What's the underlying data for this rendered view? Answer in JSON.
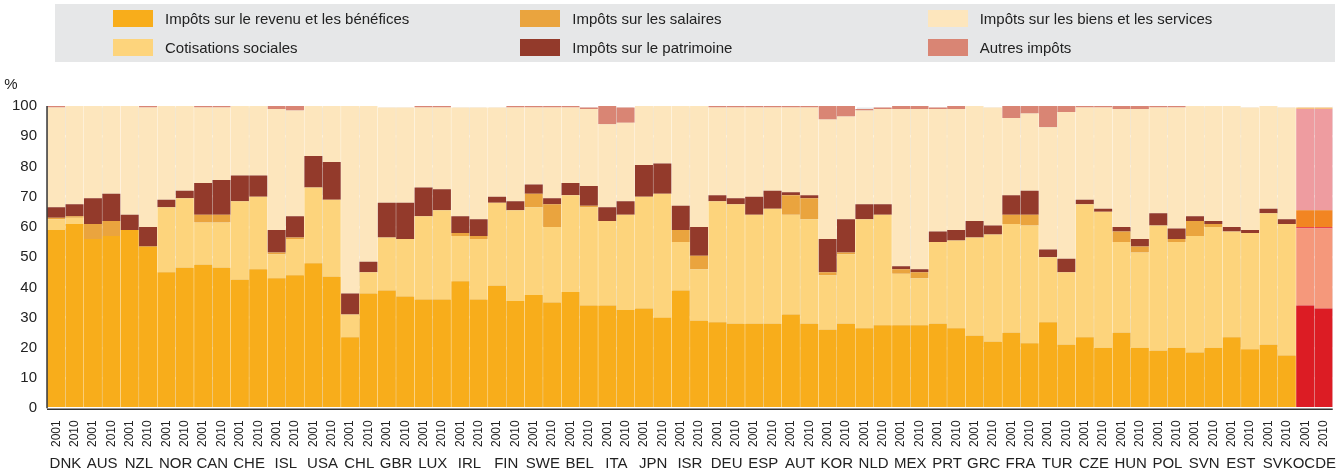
{
  "chart_data": {
    "type": "bar",
    "stacked": true,
    "ylabel": "%",
    "ylim": [
      0,
      100
    ],
    "yticks": [
      0,
      10,
      20,
      30,
      40,
      50,
      60,
      70,
      80,
      90,
      100
    ],
    "grid": true,
    "legend": "top",
    "categories": [
      "2001",
      "2010",
      "2001",
      "2010",
      "2001",
      "2010",
      "2001",
      "2010",
      "2001",
      "2010",
      "2001",
      "2010",
      "2001",
      "2010",
      "2001",
      "2010",
      "2001",
      "2010",
      "2001",
      "2010",
      "2001",
      "2010",
      "2001",
      "2010",
      "2001",
      "2010",
      "2001",
      "2010",
      "2001",
      "2010",
      "2001",
      "2010",
      "2001",
      "2010",
      "2001",
      "2010",
      "2001",
      "2010",
      "2001",
      "2010",
      "2001",
      "2010",
      "2001",
      "2010",
      "2001",
      "2010",
      "2001",
      "2010",
      "2001",
      "2010",
      "2001",
      "2010",
      "2001",
      "2010",
      "2001",
      "2010",
      "2001",
      "2010",
      "2001",
      "2010",
      "2001",
      "2010",
      "2001",
      "2010",
      "2001",
      "2010",
      "2001",
      "2010",
      "2001",
      "2010"
    ],
    "annotations": [
      "DNK",
      "AUS",
      "NZL",
      "NOR",
      "CAN",
      "CHE",
      "ISL",
      "USA",
      "CHL",
      "GBR",
      "LUX",
      "IRL",
      "FIN",
      "SWE",
      "BEL",
      "ITA",
      "JPN",
      "ISR",
      "DEU",
      "ESP",
      "AUT",
      "KOR",
      "NLD",
      "MEX",
      "PRT",
      "GRC",
      "FRA",
      "TUR",
      "CZE",
      "HUN",
      "POL",
      "SVN",
      "EST",
      "SVK",
      "OCDE"
    ],
    "series": [
      {
        "name": "Impôts sur le revenu et les bénéfices",
        "values": [
          59,
          61,
          56,
          57,
          59,
          53.5,
          45,
          46.5,
          47.5,
          46.5,
          42.5,
          46,
          43,
          44,
          48,
          43.5,
          23.5,
          38,
          39,
          37,
          36,
          36,
          42,
          36,
          40.5,
          35.5,
          37.5,
          35,
          38.5,
          34,
          34,
          32.5,
          33,
          30,
          39,
          29,
          28.5,
          28,
          28,
          28,
          31,
          28,
          26,
          28,
          26.5,
          27.5,
          27.5,
          27.5,
          28,
          26.5,
          24,
          22,
          25,
          21.5,
          28.5,
          21,
          23.5,
          20,
          25,
          20,
          19,
          20,
          18.5,
          20,
          23.5,
          19.5,
          21,
          17.5,
          34,
          33
        ],
        "colors": [
          "#f8ad1b",
          "#f8ad1b",
          "#f8ad1b",
          "#f8ad1b",
          "#f8ad1b",
          "#f8ad1b",
          "#f8ad1b",
          "#f8ad1b",
          "#f8ad1b",
          "#f8ad1b",
          "#f8ad1b",
          "#f8ad1b",
          "#f8ad1b",
          "#f8ad1b",
          "#f8ad1b",
          "#f8ad1b",
          "#f8ad1b",
          "#f8ad1b",
          "#f8ad1b",
          "#f8ad1b",
          "#f8ad1b",
          "#f8ad1b",
          "#f8ad1b",
          "#f8ad1b",
          "#f8ad1b",
          "#f8ad1b",
          "#f8ad1b",
          "#f8ad1b",
          "#f8ad1b",
          "#f8ad1b",
          "#f8ad1b",
          "#f8ad1b",
          "#f8ad1b",
          "#f8ad1b",
          "#f8ad1b",
          "#f8ad1b",
          "#f8ad1b",
          "#f8ad1b",
          "#f8ad1b",
          "#f8ad1b",
          "#f8ad1b",
          "#f8ad1b",
          "#f8ad1b",
          "#f8ad1b",
          "#f8ad1b",
          "#f8ad1b",
          "#f8ad1b",
          "#f8ad1b",
          "#f8ad1b",
          "#f8ad1b",
          "#f8ad1b",
          "#f8ad1b",
          "#f8ad1b",
          "#f8ad1b",
          "#f8ad1b",
          "#f8ad1b",
          "#f8ad1b",
          "#f8ad1b",
          "#f8ad1b",
          "#f8ad1b",
          "#f8ad1b",
          "#f8ad1b",
          "#f8ad1b",
          "#f8ad1b",
          "#f8ad1b",
          "#f8ad1b",
          "#f8ad1b",
          "#f8ad1b",
          "#dc1c24",
          "#dc1c24"
        ]
      },
      {
        "name": "Cotisations sociales",
        "values": [
          3.5,
          2,
          0,
          0,
          0,
          0,
          21.5,
          23,
          14,
          15,
          26,
          24,
          8,
          12,
          25,
          25.5,
          7.5,
          7,
          17.5,
          19,
          27.5,
          29.5,
          15,
          20,
          27.5,
          30,
          29,
          25,
          32,
          32.5,
          28,
          31.5,
          37,
          41,
          16,
          17,
          40,
          39.5,
          36,
          38,
          33,
          34.5,
          18,
          23,
          36,
          36.5,
          17,
          15.5,
          27,
          29,
          32.5,
          35.5,
          36,
          39,
          21.5,
          24,
          44,
          45,
          30,
          31.5,
          41.5,
          35,
          38.5,
          40,
          35,
          38.5,
          43.5,
          43.5,
          25.5,
          26.5
        ],
        "colors": [
          "#fdd47c",
          "#fdd47c",
          "#fdd47c",
          "#fdd47c",
          "#fdd47c",
          "#fdd47c",
          "#fdd47c",
          "#fdd47c",
          "#fdd47c",
          "#fdd47c",
          "#fdd47c",
          "#fdd47c",
          "#fdd47c",
          "#fdd47c",
          "#fdd47c",
          "#fdd47c",
          "#fdd47c",
          "#fdd47c",
          "#fdd47c",
          "#fdd47c",
          "#fdd47c",
          "#fdd47c",
          "#fdd47c",
          "#fdd47c",
          "#fdd47c",
          "#fdd47c",
          "#fdd47c",
          "#fdd47c",
          "#fdd47c",
          "#fdd47c",
          "#fdd47c",
          "#fdd47c",
          "#fdd47c",
          "#fdd47c",
          "#fdd47c",
          "#fdd47c",
          "#fdd47c",
          "#fdd47c",
          "#fdd47c",
          "#fdd47c",
          "#fdd47c",
          "#fdd47c",
          "#fdd47c",
          "#fdd47c",
          "#fdd47c",
          "#fdd47c",
          "#fdd47c",
          "#fdd47c",
          "#fdd47c",
          "#fdd47c",
          "#fdd47c",
          "#fdd47c",
          "#fdd47c",
          "#fdd47c",
          "#fdd47c",
          "#fdd47c",
          "#fdd47c",
          "#fdd47c",
          "#fdd47c",
          "#fdd47c",
          "#fdd47c",
          "#fdd47c",
          "#fdd47c",
          "#fdd47c",
          "#fdd47c",
          "#fdd47c",
          "#fdd47c",
          "#fdd47c",
          "#f5987b",
          "#f5987b"
        ]
      },
      {
        "name": "Impôts sur les salaires",
        "values": [
          0.5,
          0.5,
          5,
          5,
          0,
          0,
          0,
          0,
          2.5,
          2.5,
          0,
          0,
          0.5,
          0.5,
          0,
          0,
          0,
          0,
          0,
          0,
          0,
          0,
          1,
          1,
          0,
          0,
          4.5,
          7.5,
          0,
          0.5,
          0,
          0,
          0,
          0,
          4,
          4.5,
          0,
          0,
          0,
          0,
          6.5,
          7,
          1,
          0.5,
          0,
          0,
          1.5,
          2,
          0,
          0,
          0,
          0,
          3,
          3.5,
          0,
          0,
          0,
          0,
          3.5,
          2,
          0,
          1,
          5,
          1,
          0,
          0,
          0,
          0,
          0.5,
          0.5
        ],
        "colors": [
          "#eaa43e",
          "#eaa43e",
          "#eaa43e",
          "#eaa43e",
          "#eaa43e",
          "#eaa43e",
          "#eaa43e",
          "#eaa43e",
          "#eaa43e",
          "#eaa43e",
          "#eaa43e",
          "#eaa43e",
          "#eaa43e",
          "#eaa43e",
          "#eaa43e",
          "#eaa43e",
          "#eaa43e",
          "#eaa43e",
          "#eaa43e",
          "#eaa43e",
          "#eaa43e",
          "#eaa43e",
          "#eaa43e",
          "#eaa43e",
          "#eaa43e",
          "#eaa43e",
          "#eaa43e",
          "#eaa43e",
          "#eaa43e",
          "#eaa43e",
          "#eaa43e",
          "#eaa43e",
          "#eaa43e",
          "#eaa43e",
          "#eaa43e",
          "#eaa43e",
          "#eaa43e",
          "#eaa43e",
          "#eaa43e",
          "#eaa43e",
          "#eaa43e",
          "#eaa43e",
          "#eaa43e",
          "#eaa43e",
          "#eaa43e",
          "#eaa43e",
          "#eaa43e",
          "#eaa43e",
          "#eaa43e",
          "#eaa43e",
          "#eaa43e",
          "#eaa43e",
          "#eaa43e",
          "#eaa43e",
          "#eaa43e",
          "#eaa43e",
          "#eaa43e",
          "#eaa43e",
          "#eaa43e",
          "#eaa43e",
          "#eaa43e",
          "#eaa43e",
          "#eaa43e",
          "#eaa43e",
          "#eaa43e",
          "#eaa43e",
          "#eaa43e",
          "#eaa43e",
          "#e8474e",
          "#e8474e"
        ]
      },
      {
        "name": "Impôts sur le patrimoine",
        "values": [
          3.5,
          4,
          8.5,
          9,
          5,
          6.5,
          2.5,
          2.5,
          10.5,
          11.5,
          8.5,
          7,
          7.5,
          7,
          10.5,
          12.5,
          7,
          3.5,
          11.5,
          12,
          9.5,
          7,
          5.5,
          5.5,
          2,
          3,
          3,
          2,
          4,
          6.5,
          4.5,
          4.5,
          10.5,
          10,
          8,
          9.5,
          2,
          2,
          6,
          6,
          1,
          1,
          11,
          11,
          5,
          3.5,
          1,
          1,
          3.5,
          3.5,
          5.5,
          3,
          6.5,
          8,
          2.5,
          4.5,
          1.5,
          1,
          1.5,
          2.5,
          4,
          3.5,
          1.5,
          1,
          1.5,
          1,
          1.5,
          1.5,
          5.5,
          5.5
        ],
        "colors": [
          "#933a2b",
          "#933a2b",
          "#933a2b",
          "#933a2b",
          "#933a2b",
          "#933a2b",
          "#933a2b",
          "#933a2b",
          "#933a2b",
          "#933a2b",
          "#933a2b",
          "#933a2b",
          "#933a2b",
          "#933a2b",
          "#933a2b",
          "#933a2b",
          "#933a2b",
          "#933a2b",
          "#933a2b",
          "#933a2b",
          "#933a2b",
          "#933a2b",
          "#933a2b",
          "#933a2b",
          "#933a2b",
          "#933a2b",
          "#933a2b",
          "#933a2b",
          "#933a2b",
          "#933a2b",
          "#933a2b",
          "#933a2b",
          "#933a2b",
          "#933a2b",
          "#933a2b",
          "#933a2b",
          "#933a2b",
          "#933a2b",
          "#933a2b",
          "#933a2b",
          "#933a2b",
          "#933a2b",
          "#933a2b",
          "#933a2b",
          "#933a2b",
          "#933a2b",
          "#933a2b",
          "#933a2b",
          "#933a2b",
          "#933a2b",
          "#933a2b",
          "#933a2b",
          "#933a2b",
          "#933a2b",
          "#933a2b",
          "#933a2b",
          "#933a2b",
          "#933a2b",
          "#933a2b",
          "#933a2b",
          "#933a2b",
          "#933a2b",
          "#933a2b",
          "#933a2b",
          "#933a2b",
          "#933a2b",
          "#933a2b",
          "#933a2b",
          "#f28522",
          "#f28522"
        ]
      },
      {
        "name": "Impôts sur les biens et les services",
        "values": [
          33,
          32.5,
          30.5,
          29,
          36,
          39.5,
          31,
          28,
          25,
          24,
          23,
          23,
          40,
          35,
          16.5,
          18.5,
          62,
          51.5,
          31.5,
          31.5,
          26.5,
          27,
          36,
          37,
          29.5,
          31,
          25.5,
          30,
          25,
          25.5,
          27.5,
          26,
          19.5,
          19,
          33,
          40,
          29,
          30,
          29.5,
          27.5,
          28,
          29,
          39.5,
          34,
          31,
          31.5,
          52,
          53,
          40.5,
          40,
          38,
          39,
          25.5,
          25.5,
          40.5,
          48.5,
          30.5,
          33.5,
          39,
          43,
          35,
          40,
          36.5,
          38,
          40,
          40.5,
          34,
          37,
          33.5,
          33.5
        ],
        "colors": [
          "#fde6bd",
          "#fde6bd",
          "#fde6bd",
          "#fde6bd",
          "#fde6bd",
          "#fde6bd",
          "#fde6bd",
          "#fde6bd",
          "#fde6bd",
          "#fde6bd",
          "#fde6bd",
          "#fde6bd",
          "#fde6bd",
          "#fde6bd",
          "#fde6bd",
          "#fde6bd",
          "#fde6bd",
          "#fde6bd",
          "#fde6bd",
          "#fde6bd",
          "#fde6bd",
          "#fde6bd",
          "#fde6bd",
          "#fde6bd",
          "#fde6bd",
          "#fde6bd",
          "#fde6bd",
          "#fde6bd",
          "#fde6bd",
          "#fde6bd",
          "#fde6bd",
          "#fde6bd",
          "#fde6bd",
          "#fde6bd",
          "#fde6bd",
          "#fde6bd",
          "#fde6bd",
          "#fde6bd",
          "#fde6bd",
          "#fde6bd",
          "#fde6bd",
          "#fde6bd",
          "#fde6bd",
          "#fde6bd",
          "#fde6bd",
          "#fde6bd",
          "#fde6bd",
          "#fde6bd",
          "#fde6bd",
          "#fde6bd",
          "#fde6bd",
          "#fde6bd",
          "#fde6bd",
          "#fde6bd",
          "#fde6bd",
          "#fde6bd",
          "#fde6bd",
          "#fde6bd",
          "#fde6bd",
          "#fde6bd",
          "#fde6bd",
          "#fde6bd",
          "#fde6bd",
          "#fde6bd",
          "#fde6bd",
          "#fde6bd",
          "#fde6bd",
          "#fde6bd",
          "#ee9ca0",
          "#ee9ca0"
        ]
      },
      {
        "name": "Autres impôts",
        "values": [
          0.5,
          0,
          0,
          0,
          0,
          0.5,
          0,
          0,
          0.5,
          0.5,
          0,
          0,
          1,
          1.5,
          0,
          0,
          0,
          0,
          0,
          0,
          0.5,
          0.5,
          0,
          0,
          0,
          0.5,
          0.5,
          0.5,
          0.5,
          0.5,
          6,
          5,
          0,
          0,
          0,
          0,
          0.5,
          0.5,
          0.5,
          0.5,
          0.5,
          0.5,
          4.5,
          3.5,
          0.5,
          0.5,
          1,
          1,
          0.5,
          1,
          0,
          0,
          4,
          2.5,
          7,
          2,
          0.5,
          0.5,
          1,
          1,
          0.5,
          0.5,
          0,
          0,
          0,
          0,
          0,
          0,
          0.5,
          0.5
        ],
        "colors": [
          "#d98574",
          "#d98574",
          "#d98574",
          "#d98574",
          "#d98574",
          "#d98574",
          "#d98574",
          "#d98574",
          "#d98574",
          "#d98574",
          "#d98574",
          "#d98574",
          "#d98574",
          "#d98574",
          "#d98574",
          "#d98574",
          "#d98574",
          "#d98574",
          "#d98574",
          "#d98574",
          "#d98574",
          "#d98574",
          "#d98574",
          "#d98574",
          "#d98574",
          "#d98574",
          "#d98574",
          "#d98574",
          "#d98574",
          "#d98574",
          "#d98574",
          "#d98574",
          "#d98574",
          "#d98574",
          "#d98574",
          "#d98574",
          "#d98574",
          "#d98574",
          "#d98574",
          "#d98574",
          "#d98574",
          "#d98574",
          "#d98574",
          "#d98574",
          "#d98574",
          "#d98574",
          "#d98574",
          "#d98574",
          "#d98574",
          "#d98574",
          "#d98574",
          "#d98574",
          "#d98574",
          "#d98574",
          "#d98574",
          "#d98574",
          "#d98574",
          "#d98574",
          "#d98574",
          "#d98574",
          "#d98574",
          "#d98574",
          "#d98574",
          "#d98574",
          "#d98574",
          "#d98574",
          "#d98574",
          "#d98574",
          "#f8c27e",
          "#f8c27e"
        ]
      }
    ]
  }
}
